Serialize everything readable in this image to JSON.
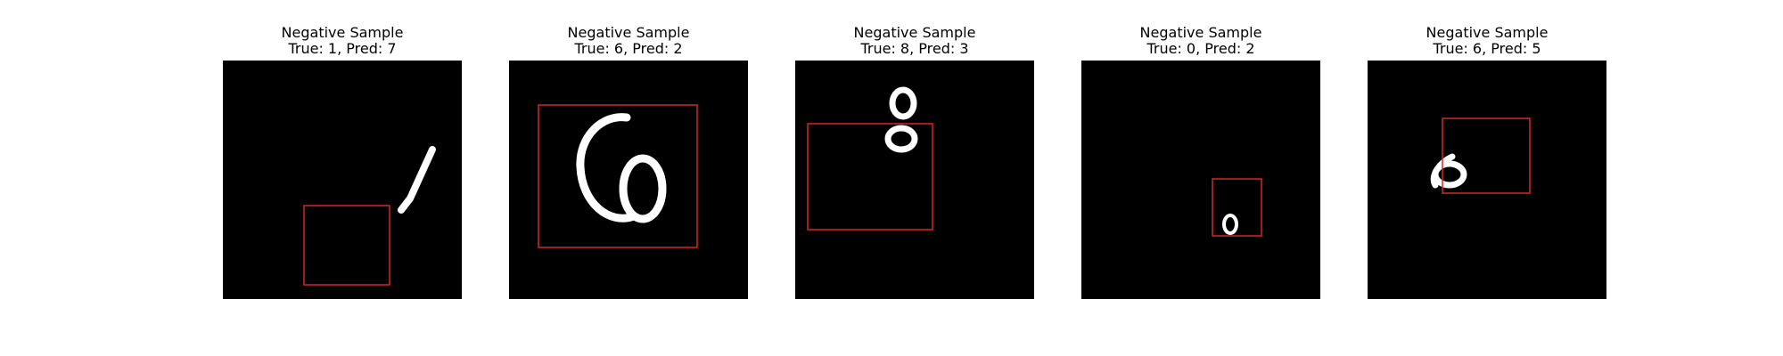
{
  "figure": {
    "background_color": "#ffffff",
    "image_background_color": "#000000",
    "box_color": "#d62728",
    "panels": [
      {
        "title": "Negative Sample",
        "subtitle": "True: 1, Pred: 7",
        "digit_shown": "1"
      },
      {
        "title": "Negative Sample",
        "subtitle": "True: 6, Pred: 2",
        "digit_shown": "6"
      },
      {
        "title": "Negative Sample",
        "subtitle": "True: 8, Pred: 3",
        "digit_shown": "8"
      },
      {
        "title": "Negative Sample",
        "subtitle": "True: 0, Pred: 2",
        "digit_shown": "0"
      },
      {
        "title": "Negative Sample",
        "subtitle": "True: 6, Pred: 5",
        "digit_shown": "6"
      }
    ]
  }
}
